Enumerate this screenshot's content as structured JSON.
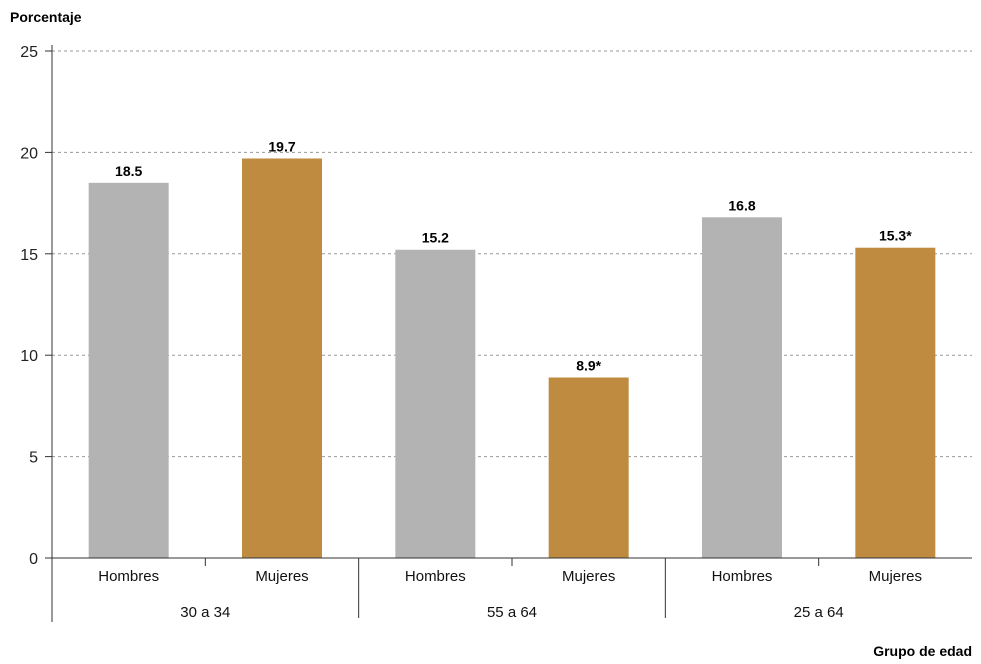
{
  "chart_data": {
    "type": "bar",
    "ylabel": "Porcentaje",
    "xlabel": "Grupo de edad",
    "ylim": [
      0,
      25
    ],
    "yticks": [
      0,
      5,
      10,
      15,
      20,
      25
    ],
    "grid": true,
    "groups": [
      {
        "label": "30 a 34",
        "bars": [
          {
            "category": "Hombres",
            "value": 18.5,
            "label": "18.5",
            "color": "#b3b3b3"
          },
          {
            "category": "Mujeres",
            "value": 19.7,
            "label": "19.7",
            "color": "#bf8b41"
          }
        ]
      },
      {
        "label": "55 a 64",
        "bars": [
          {
            "category": "Hombres",
            "value": 15.2,
            "label": "15.2",
            "color": "#b3b3b3"
          },
          {
            "category": "Mujeres",
            "value": 8.9,
            "label": "8.9*",
            "color": "#bf8b41"
          }
        ]
      },
      {
        "label": "25 a 64",
        "bars": [
          {
            "category": "Hombres",
            "value": 16.8,
            "label": "16.8",
            "color": "#b3b3b3"
          },
          {
            "category": "Mujeres",
            "value": 15.3,
            "label": "15.3*",
            "color": "#bf8b41"
          }
        ]
      }
    ]
  }
}
